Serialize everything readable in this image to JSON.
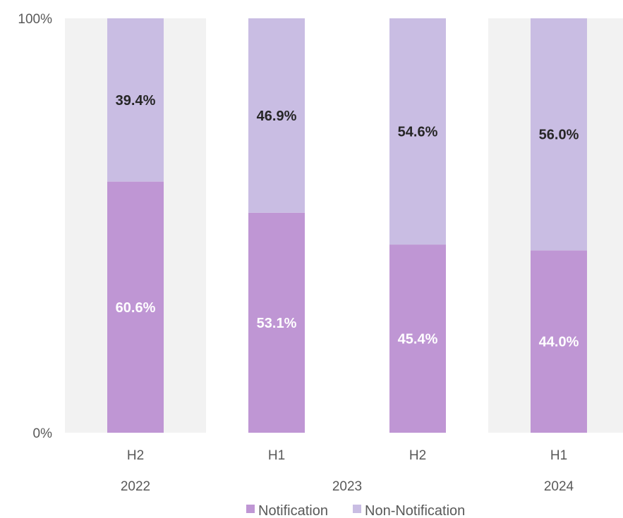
{
  "chart_data": {
    "type": "bar",
    "stacked": true,
    "percent_stacked": true,
    "categories": [
      "H2",
      "H1",
      "H2",
      "H1"
    ],
    "groups": [
      {
        "label": "2022",
        "categories": [
          0
        ]
      },
      {
        "label": "2023",
        "categories": [
          1,
          2
        ]
      },
      {
        "label": "2024",
        "categories": [
          3
        ]
      }
    ],
    "series": [
      {
        "name": "Notification",
        "values": [
          60.6,
          53.1,
          45.4,
          44.0
        ],
        "labels": [
          "60.6%",
          "53.1%",
          "45.4%",
          "44.0%"
        ],
        "color": "#bf96d4",
        "label_color": "#ffffff"
      },
      {
        "name": "Non-Notification",
        "values": [
          39.4,
          46.9,
          54.6,
          56.0
        ],
        "labels": [
          "39.4%",
          "46.9%",
          "54.6%",
          "56.0%"
        ],
        "color": "#c9bde3",
        "label_color": "#262626"
      }
    ],
    "yticks": [
      {
        "value": 0,
        "label": "0%"
      },
      {
        "value": 100,
        "label": "100%"
      }
    ],
    "ylim": [
      0,
      100
    ],
    "band_categories": [
      0,
      3
    ],
    "band_color": "#f2f2f2",
    "title": "",
    "xlabel": "",
    "ylabel": "",
    "legend": "bottom",
    "grid": false
  }
}
